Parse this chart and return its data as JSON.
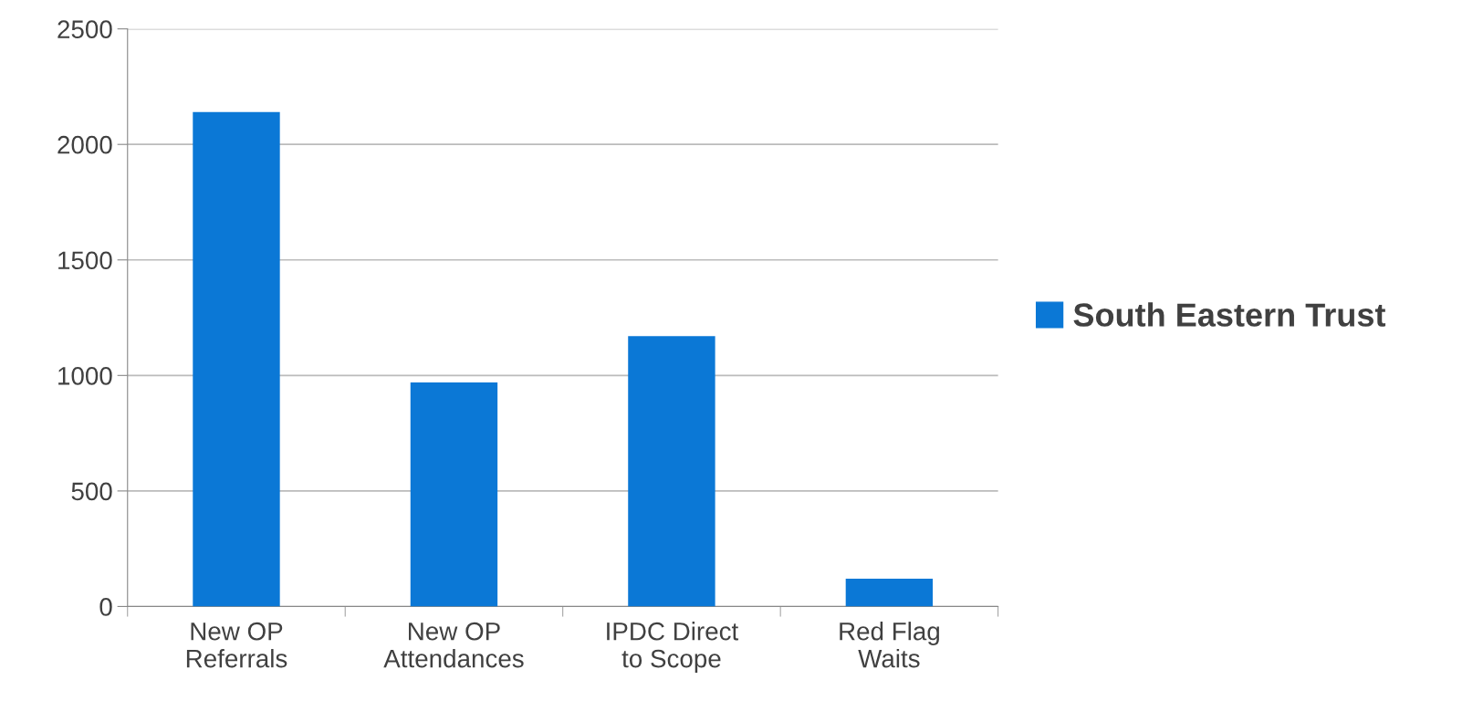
{
  "chart_data": {
    "type": "bar",
    "categories": [
      "New OP\nReferrals",
      "New OP\nAttendances",
      "IPDC Direct\nto Scope",
      "Red Flag\nWaits"
    ],
    "series": [
      {
        "name": "South Eastern Trust",
        "color": "#0b78d6",
        "values": [
          2140,
          970,
          1170,
          120
        ]
      }
    ],
    "ylim": [
      0,
      2500
    ],
    "yticks": [
      0,
      500,
      1000,
      1500,
      2000,
      2500
    ],
    "grid": "y",
    "legend": "right"
  }
}
